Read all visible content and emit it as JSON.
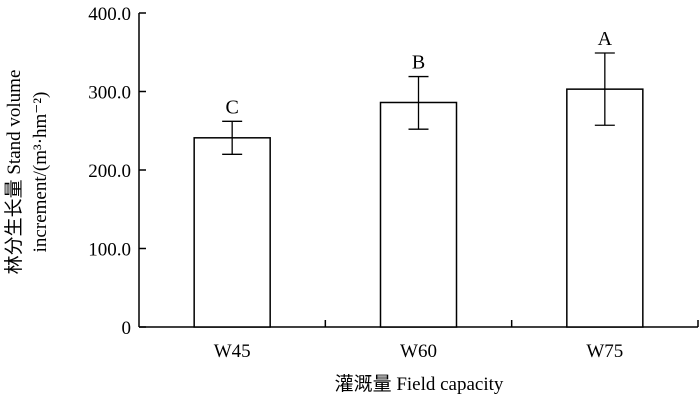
{
  "chart_data": {
    "type": "bar",
    "categories": [
      "W45",
      "W60",
      "W75"
    ],
    "values": [
      241,
      286,
      303
    ],
    "error_upper": [
      262,
      319,
      349
    ],
    "error_lower": [
      220,
      252,
      257
    ],
    "significance_letters": [
      "C",
      "B",
      "A"
    ],
    "xlabel": "灌溉量  Field capacity",
    "ylabel_line1": "林分生长量 Stand volume",
    "ylabel_line2": "increment/(m³·hm⁻²)",
    "ylim": [
      0,
      400
    ],
    "yticks": [
      "0",
      "100.0",
      "200.0",
      "300.0",
      "400.0"
    ],
    "grid": false,
    "legend": "none",
    "bar_fill": "#ffffff",
    "bar_stroke": "#000000"
  }
}
